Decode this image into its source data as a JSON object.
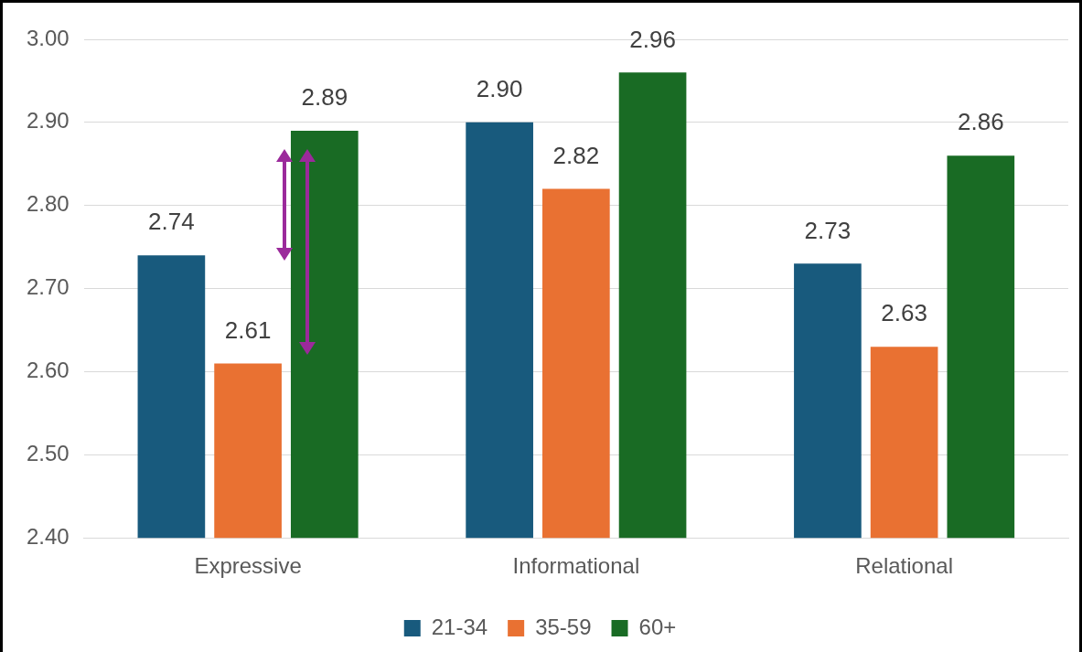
{
  "chart_data": {
    "type": "bar",
    "categories": [
      "Expressive",
      "Informational",
      "Relational"
    ],
    "series": [
      {
        "name": "21-34",
        "color": "#185a7d",
        "values": [
          2.74,
          2.9,
          2.73
        ],
        "value_labels": [
          "2.74",
          "2.90",
          "2.73"
        ]
      },
      {
        "name": "35-59",
        "color": "#e97132",
        "values": [
          2.61,
          2.82,
          2.63
        ],
        "value_labels": [
          "2.61",
          "2.82",
          "2.63"
        ]
      },
      {
        "name": "60+",
        "color": "#196b24",
        "values": [
          2.89,
          2.96,
          2.86
        ],
        "value_labels": [
          "2.89",
          "2.96",
          "2.86"
        ]
      }
    ],
    "ylim": [
      2.4,
      3.0
    ],
    "yticks": [
      {
        "value": 2.4,
        "label": "2.40"
      },
      {
        "value": 2.5,
        "label": "2.50"
      },
      {
        "value": 2.6,
        "label": "2.60"
      },
      {
        "value": 2.7,
        "label": "2.70"
      },
      {
        "value": 2.8,
        "label": "2.80"
      },
      {
        "value": 2.9,
        "label": "2.90"
      },
      {
        "value": 3.0,
        "label": "3.00"
      }
    ],
    "grid": "y",
    "legend": "bottom"
  }
}
